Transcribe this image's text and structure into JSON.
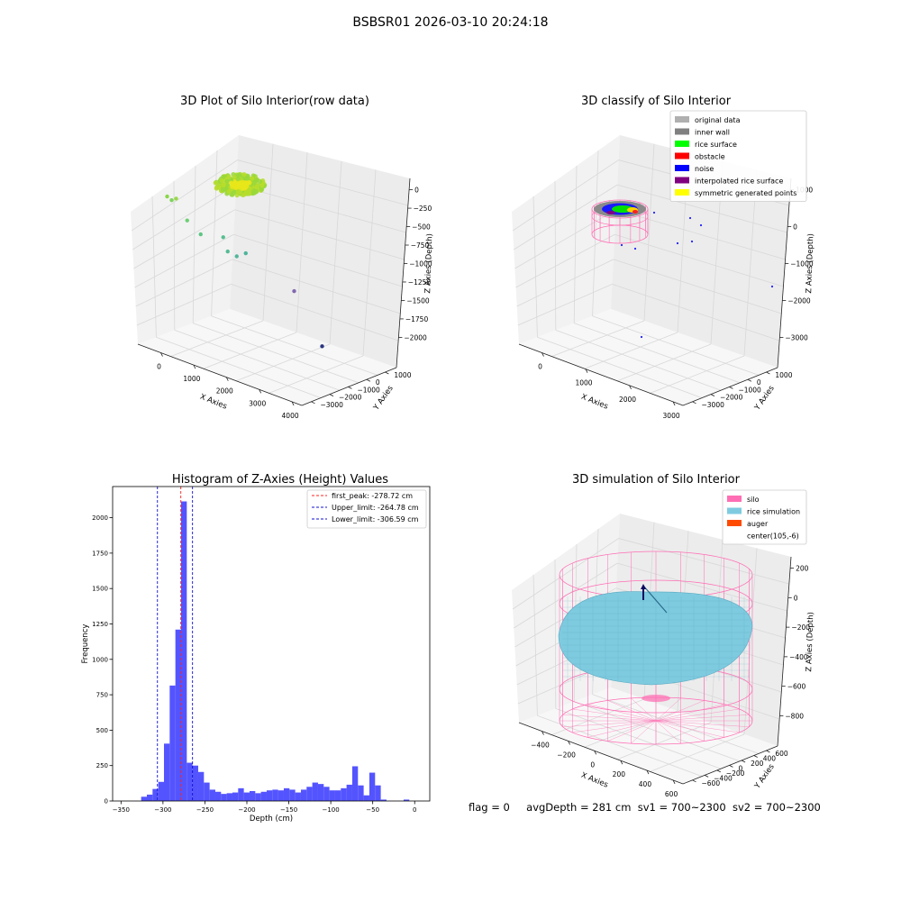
{
  "figure": {
    "suptitle": "BSBSR01 2026-03-10 20:24:18",
    "status": {
      "flag": "flag = 0",
      "avg_depth": "avgDepth = 281 cm",
      "sv1": "sv1 = 700~2300",
      "sv2": "sv2 = 700~2300"
    }
  },
  "colors": {
    "hist_bar": "#4b4bff",
    "first_peak": "#ff2020",
    "limits": "#1010d0",
    "silo": "#ff6eb4",
    "rice": "#7ecbe0",
    "auger": "#ff4a00",
    "grid": "#d8d8d8"
  },
  "chart_data": [
    {
      "type": "scatter",
      "title": "3D Plot of Silo Interior(row data)",
      "xlabel": "X Axies",
      "ylabel": "Y Axies",
      "zlabel": "Z Axies (Depth)",
      "xticks": [
        "0",
        "1000",
        "2000",
        "3000",
        "4000"
      ],
      "yticks": [
        "1000",
        "0",
        "−1000",
        "−2000",
        "−3000"
      ],
      "zticks": [
        "0",
        "−250",
        "−500",
        "−750",
        "−1000",
        "−1250",
        "−1500",
        "−1750",
        "−2000"
      ],
      "points": [
        {
          "x": 200,
          "y": 1000,
          "z": -250,
          "color": "#8bd64a"
        },
        {
          "x": 300,
          "y": 950,
          "z": -300,
          "color": "#7fd55a"
        },
        {
          "x": 400,
          "y": 900,
          "z": -250,
          "color": "#9ad84a"
        },
        {
          "x": 600,
          "y": 750,
          "z": -600,
          "color": "#6fcf75"
        },
        {
          "x": 900,
          "y": 600,
          "z": -800,
          "color": "#5ec585"
        },
        {
          "x": 1400,
          "y": 350,
          "z": -750,
          "color": "#58bf8e"
        },
        {
          "x": 1500,
          "y": 300,
          "z": -1000,
          "color": "#55bb95"
        },
        {
          "x": 1700,
          "y": 200,
          "z": -1050,
          "color": "#52b79a"
        },
        {
          "x": 1900,
          "y": 100,
          "z": -950,
          "color": "#4fb49c"
        },
        {
          "x": 3200,
          "y": -300,
          "z": -1500,
          "color": "#8169b0"
        },
        {
          "x": 2200,
          "y": -1600,
          "z": -2000,
          "color": "#2a3580"
        }
      ]
    },
    {
      "type": "scatter",
      "title": "3D classify of Silo Interior",
      "xlabel": "X Axies",
      "ylabel": "Y Axies",
      "zlabel": "Z Axies (Depth)",
      "xticks": [
        "0",
        "1000",
        "2000",
        "3000"
      ],
      "yticks": [
        "1000",
        "0",
        "−1000",
        "−2000",
        "−3000"
      ],
      "zticks": [
        "1000",
        "0",
        "−1000",
        "−2000",
        "−3000"
      ],
      "legend": {
        "placement": "upper right",
        "entries": [
          {
            "label": "original data",
            "color": "#b0b0b0"
          },
          {
            "label": "inner wall",
            "color": "#808080"
          },
          {
            "label": "rice surface",
            "color": "#00ff00"
          },
          {
            "label": "obstacle",
            "color": "#ff0000"
          },
          {
            "label": "noise",
            "color": "#0000ff"
          },
          {
            "label": "interpolated rice surface",
            "color": "#800080"
          },
          {
            "label": "symmetric generated points",
            "color": "#ffff00"
          }
        ]
      }
    },
    {
      "type": "bar",
      "title": "Histogram of Z-Axies (Height) Values",
      "xlabel": "Depth (cm)",
      "ylabel": "Frequency",
      "xlim": [
        -360,
        18
      ],
      "ylim": [
        0,
        2220
      ],
      "xticks": [
        -350,
        -300,
        -250,
        -200,
        -150,
        -100,
        -50,
        0
      ],
      "yticks": [
        0,
        250,
        500,
        750,
        1000,
        1250,
        1500,
        1750,
        2000
      ],
      "bin_width": 6.8,
      "bins": [
        {
          "x": -326,
          "v": 30
        },
        {
          "x": -319.2,
          "v": 45
        },
        {
          "x": -312.4,
          "v": 85
        },
        {
          "x": -305.6,
          "v": 135
        },
        {
          "x": -298.8,
          "v": 405
        },
        {
          "x": -292,
          "v": 815
        },
        {
          "x": -285.2,
          "v": 1210
        },
        {
          "x": -278.4,
          "v": 2115
        },
        {
          "x": -271.6,
          "v": 270
        },
        {
          "x": -264.8,
          "v": 250
        },
        {
          "x": -258,
          "v": 205
        },
        {
          "x": -251.2,
          "v": 130
        },
        {
          "x": -244.4,
          "v": 80
        },
        {
          "x": -237.6,
          "v": 65
        },
        {
          "x": -230.8,
          "v": 50
        },
        {
          "x": -224,
          "v": 55
        },
        {
          "x": -217.2,
          "v": 60
        },
        {
          "x": -210.4,
          "v": 90
        },
        {
          "x": -203.6,
          "v": 60
        },
        {
          "x": -196.8,
          "v": 70
        },
        {
          "x": -190,
          "v": 55
        },
        {
          "x": -183.2,
          "v": 65
        },
        {
          "x": -176.4,
          "v": 75
        },
        {
          "x": -169.6,
          "v": 80
        },
        {
          "x": -162.8,
          "v": 75
        },
        {
          "x": -156,
          "v": 90
        },
        {
          "x": -149.2,
          "v": 80
        },
        {
          "x": -142.4,
          "v": 60
        },
        {
          "x": -135.6,
          "v": 80
        },
        {
          "x": -128.8,
          "v": 100
        },
        {
          "x": -122,
          "v": 130
        },
        {
          "x": -115.2,
          "v": 120
        },
        {
          "x": -108.4,
          "v": 100
        },
        {
          "x": -101.6,
          "v": 75
        },
        {
          "x": -94.8,
          "v": 75
        },
        {
          "x": -88,
          "v": 90
        },
        {
          "x": -81.2,
          "v": 115
        },
        {
          "x": -74.4,
          "v": 245
        },
        {
          "x": -67.6,
          "v": 110
        },
        {
          "x": -60.8,
          "v": 40
        },
        {
          "x": -54,
          "v": 200
        },
        {
          "x": -47.2,
          "v": 110
        },
        {
          "x": -40.4,
          "v": 10
        },
        {
          "x": -13.2,
          "v": 10
        }
      ],
      "vlines": [
        {
          "x": -278.72,
          "label": "first_peak: -278.72 cm",
          "color": "#ff2020"
        },
        {
          "x": -264.78,
          "label": "Upper_limit: -264.78 cm",
          "color": "#1010d0"
        },
        {
          "x": -306.59,
          "label": "Lower_limit: -306.59 cm",
          "color": "#1010d0"
        }
      ],
      "legend": {
        "placement": "upper right"
      }
    },
    {
      "type": "scatter",
      "title": "3D simulation of Silo Interior",
      "xlabel": "X Axies",
      "ylabel": "Y Axies",
      "zlabel": "Z Axies (Depth)",
      "xticks": [
        "−400",
        "−200",
        "0",
        "200",
        "400",
        "600"
      ],
      "yticks": [
        "600",
        "400",
        "200",
        "0",
        "−200",
        "−400",
        "−600"
      ],
      "zticks": [
        "200",
        "0",
        "−200",
        "−400",
        "−600",
        "−800"
      ],
      "legend": {
        "placement": "upper right",
        "entries": [
          {
            "label": "silo",
            "color": "#ff6eb4"
          },
          {
            "label": "rice simulation",
            "color": "#7ecbe0"
          },
          {
            "label": "auger",
            "color": "#ff4a00"
          },
          {
            "label": "center(105,-6)",
            "color": "#ffffff"
          }
        ]
      }
    }
  ]
}
